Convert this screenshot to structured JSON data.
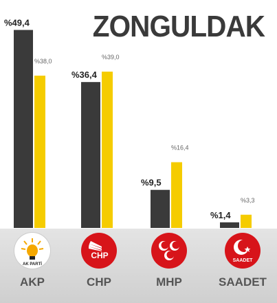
{
  "colors": {
    "current_bar": "#3a3a3a",
    "previous_bar": "#f5cc00",
    "title": "#3a3a3a",
    "footer": "#d8d8d8",
    "akp_logo_bg": "#ffffff",
    "chp_logo_bg": "#d7141a",
    "mhp_logo_bg": "#d7141a",
    "saadet_logo_bg": "#d7141a"
  },
  "chart_data": {
    "type": "bar",
    "title": "ZONGULDAK",
    "categories": [
      "AKP",
      "CHP",
      "MHP",
      "SAADET"
    ],
    "series": [
      {
        "values": [
          49.4,
          36.4,
          9.5,
          1.4
        ],
        "labels": [
          "%49,4",
          "%36,4",
          "%9,5",
          "%1,4"
        ]
      },
      {
        "values": [
          38.0,
          39.0,
          16.4,
          3.3
        ],
        "labels": [
          "%38,0",
          "%39,0",
          "%16,4",
          "%3,3"
        ]
      }
    ],
    "ylim": [
      0,
      50
    ]
  },
  "parties": [
    {
      "name": "AKP",
      "logo_text": "AK PARTİ",
      "icon": "akp-bulb-icon"
    },
    {
      "name": "CHP",
      "logo_text": "CHP",
      "icon": "chp-six-arrows-icon"
    },
    {
      "name": "MHP",
      "logo_text": "",
      "icon": "mhp-three-crescents-icon"
    },
    {
      "name": "SAADET",
      "logo_text": "SAADET",
      "icon": "saadet-crescent-icon"
    }
  ]
}
